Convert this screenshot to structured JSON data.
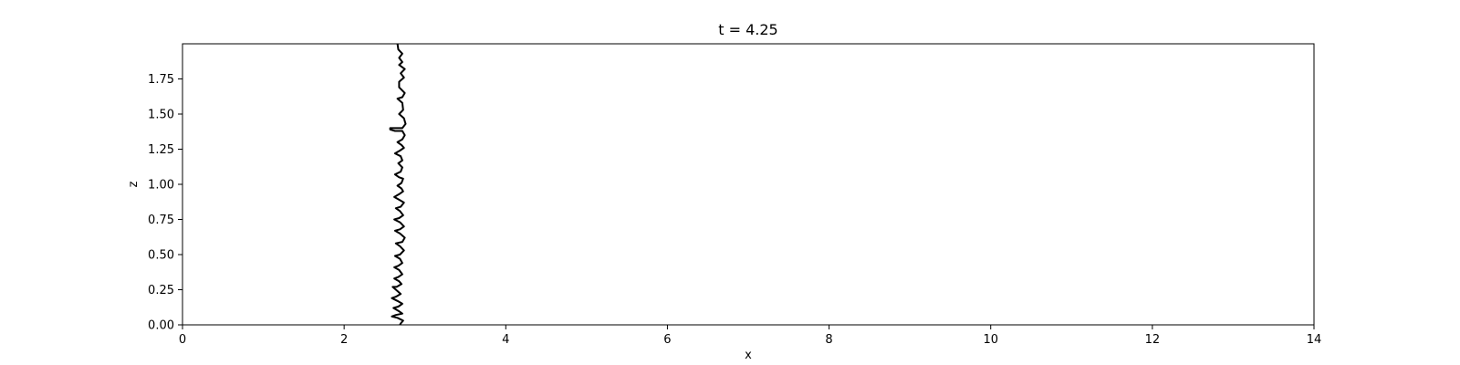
{
  "chart_data": {
    "type": "line",
    "title": "t = 4.25",
    "xlabel": "x",
    "ylabel": "z",
    "xlim": [
      0,
      14
    ],
    "ylim": [
      0,
      2.0
    ],
    "x_ticks": [
      "0",
      "2",
      "4",
      "6",
      "8",
      "10",
      "12",
      "14"
    ],
    "y_ticks": [
      "0.00",
      "0.25",
      "0.50",
      "0.75",
      "1.00",
      "1.25",
      "1.50",
      "1.75"
    ],
    "grid": false,
    "series": [
      {
        "color": "#000000",
        "points": [
          [
            2.66,
            2.0
          ],
          [
            2.67,
            1.96
          ],
          [
            2.72,
            1.93
          ],
          [
            2.68,
            1.9
          ],
          [
            2.72,
            1.87
          ],
          [
            2.68,
            1.85
          ],
          [
            2.75,
            1.82
          ],
          [
            2.7,
            1.79
          ],
          [
            2.74,
            1.76
          ],
          [
            2.68,
            1.73
          ],
          [
            2.68,
            1.69
          ],
          [
            2.75,
            1.65
          ],
          [
            2.72,
            1.62
          ],
          [
            2.66,
            1.61
          ],
          [
            2.72,
            1.58
          ],
          [
            2.73,
            1.53
          ],
          [
            2.68,
            1.5
          ],
          [
            2.74,
            1.47
          ],
          [
            2.76,
            1.43
          ],
          [
            2.72,
            1.4
          ],
          [
            2.64,
            1.4
          ],
          [
            2.57,
            1.4
          ],
          [
            2.57,
            1.39
          ],
          [
            2.63,
            1.38
          ],
          [
            2.72,
            1.38
          ],
          [
            2.75,
            1.35
          ],
          [
            2.72,
            1.32
          ],
          [
            2.66,
            1.3
          ],
          [
            2.71,
            1.28
          ],
          [
            2.74,
            1.26
          ],
          [
            2.69,
            1.24
          ],
          [
            2.63,
            1.22
          ],
          [
            2.7,
            1.2
          ],
          [
            2.72,
            1.17
          ],
          [
            2.67,
            1.15
          ],
          [
            2.72,
            1.12
          ],
          [
            2.7,
            1.09
          ],
          [
            2.63,
            1.07
          ],
          [
            2.68,
            1.05
          ],
          [
            2.73,
            1.04
          ],
          [
            2.71,
            1.01
          ],
          [
            2.66,
            0.99
          ],
          [
            2.71,
            0.97
          ],
          [
            2.73,
            0.95
          ],
          [
            2.68,
            0.93
          ],
          [
            2.62,
            0.91
          ],
          [
            2.68,
            0.89
          ],
          [
            2.74,
            0.87
          ],
          [
            2.7,
            0.84
          ],
          [
            2.64,
            0.83
          ],
          [
            2.69,
            0.81
          ],
          [
            2.73,
            0.78
          ],
          [
            2.68,
            0.76
          ],
          [
            2.62,
            0.75
          ],
          [
            2.69,
            0.73
          ],
          [
            2.74,
            0.7
          ],
          [
            2.69,
            0.68
          ],
          [
            2.63,
            0.67
          ],
          [
            2.69,
            0.65
          ],
          [
            2.75,
            0.62
          ],
          [
            2.72,
            0.59
          ],
          [
            2.64,
            0.58
          ],
          [
            2.69,
            0.56
          ],
          [
            2.74,
            0.53
          ],
          [
            2.69,
            0.5
          ],
          [
            2.63,
            0.49
          ],
          [
            2.69,
            0.47
          ],
          [
            2.72,
            0.44
          ],
          [
            2.67,
            0.42
          ],
          [
            2.62,
            0.41
          ],
          [
            2.68,
            0.39
          ],
          [
            2.72,
            0.36
          ],
          [
            2.67,
            0.34
          ],
          [
            2.62,
            0.33
          ],
          [
            2.68,
            0.31
          ],
          [
            2.71,
            0.29
          ],
          [
            2.65,
            0.27
          ],
          [
            2.6,
            0.27
          ],
          [
            2.66,
            0.24
          ],
          [
            2.7,
            0.22
          ],
          [
            2.64,
            0.2
          ],
          [
            2.59,
            0.19
          ],
          [
            2.66,
            0.17
          ],
          [
            2.72,
            0.15
          ],
          [
            2.67,
            0.13
          ],
          [
            2.61,
            0.12
          ],
          [
            2.67,
            0.1
          ],
          [
            2.72,
            0.08
          ],
          [
            2.64,
            0.07
          ],
          [
            2.59,
            0.06
          ],
          [
            2.66,
            0.05
          ],
          [
            2.73,
            0.03
          ],
          [
            2.7,
            0.01
          ],
          [
            2.69,
            0.0
          ]
        ]
      }
    ]
  }
}
